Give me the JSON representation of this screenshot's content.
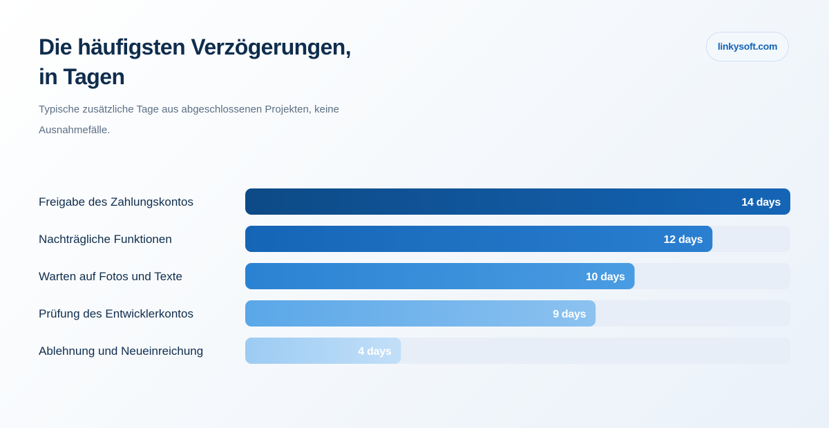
{
  "header": {
    "title_line1": "Die häufigsten Verzögerungen,",
    "title_line2": "in Tagen",
    "subtitle": "Typische zusätzliche Tage aus abgeschlossenen Projekten, keine Ausnahmefälle.",
    "brand": "linkysoft.com"
  },
  "chart_data": {
    "type": "bar",
    "orientation": "horizontal",
    "title": "Die häufigsten Verzögerungen, in Tagen",
    "subtitle": "Typische zusätzliche Tage aus abgeschlossenen Projekten, keine Ausnahmefälle.",
    "categories": [
      "Freigabe des Zahlungskontos",
      "Nachträgliche Funktionen",
      "Warten auf Fotos und Texte",
      "Prüfung des Entwicklerkontos",
      "Ablehnung und Neueinreichung"
    ],
    "values": [
      14,
      12,
      10,
      9,
      4
    ],
    "value_labels": [
      "14 days",
      "12 days",
      "10 days",
      "9 days",
      "4 days"
    ],
    "xlim": [
      0,
      14
    ],
    "grid": false,
    "legend": "none",
    "colors": {
      "bar_start": [
        "#0d4a86",
        "#1565b6",
        "#2a82d2",
        "#5aa7e8",
        "#9ccbf3"
      ],
      "bar_end": [
        "#1565b6",
        "#2a7fd0",
        "#4a9ce2",
        "#8cc2f0",
        "#c2dff8"
      ],
      "track": "#e7eef8",
      "value_text": "#ffffff",
      "category_text": "#0f2d4d"
    }
  }
}
